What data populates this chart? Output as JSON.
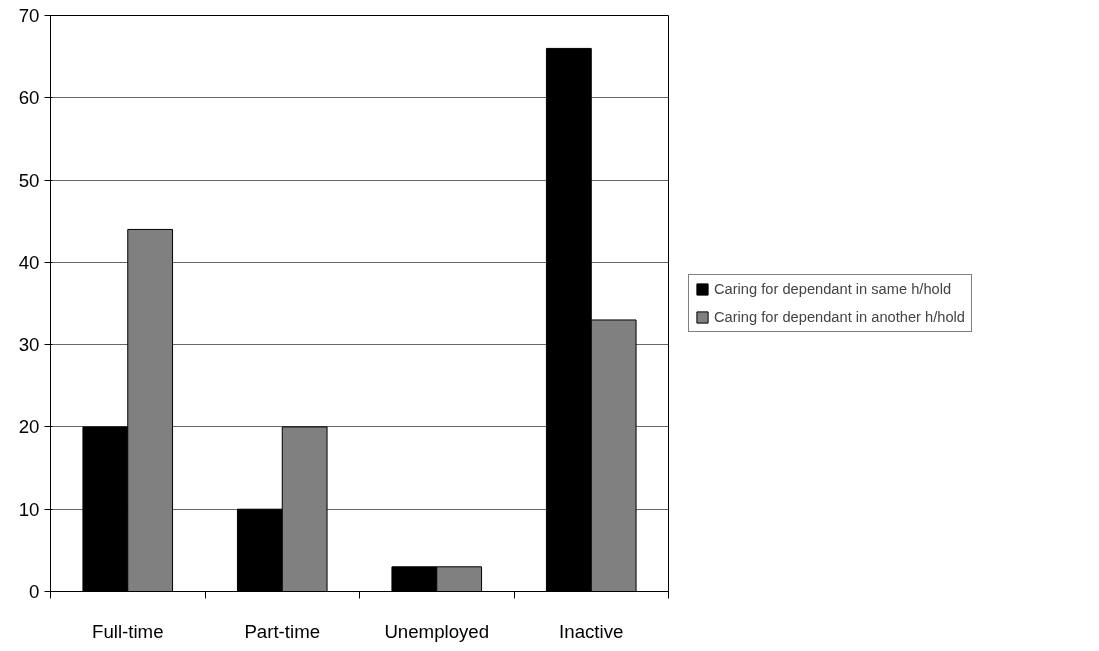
{
  "chart_data": {
    "type": "bar",
    "categories": [
      "Full-time",
      "Part-time",
      "Unemployed",
      "Inactive"
    ],
    "series": [
      {
        "name": "Caring for dependant in same h/hold",
        "color": "#000000",
        "values": [
          20,
          10,
          3,
          66
        ]
      },
      {
        "name": "Caring for dependant in another h/hold",
        "color": "#808080",
        "values": [
          44,
          20,
          3,
          33
        ]
      }
    ],
    "ylim": [
      0,
      70
    ],
    "yticks": [
      0,
      10,
      20,
      30,
      40,
      50,
      60,
      70
    ],
    "grid": "y",
    "legend": "right"
  }
}
